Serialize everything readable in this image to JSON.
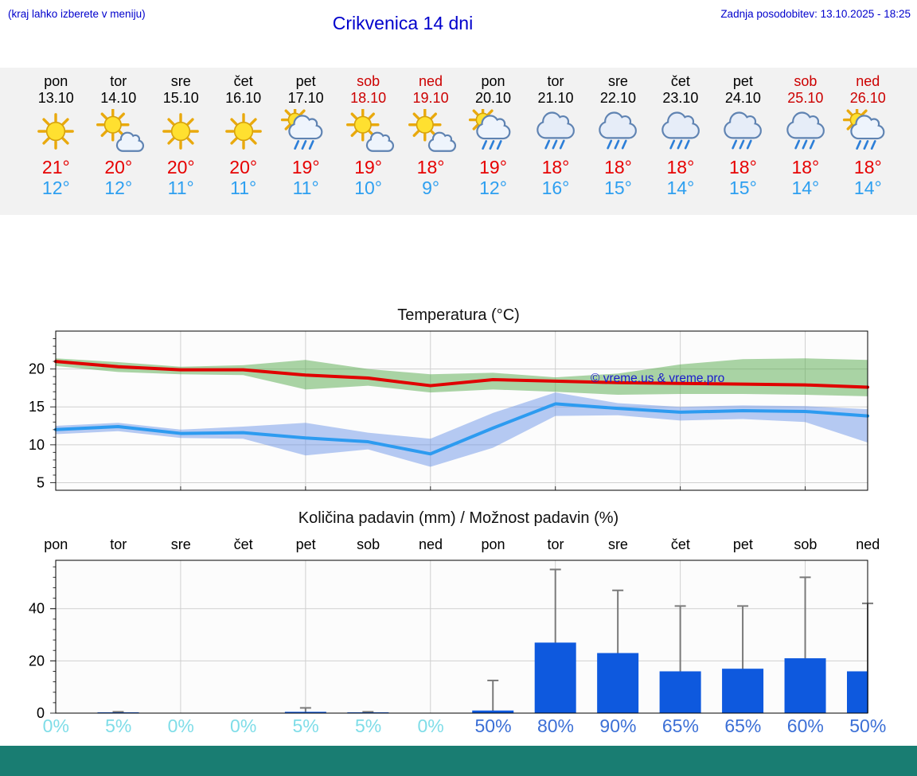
{
  "header": {
    "left_note": "(kraj lahko izberete v meniju)",
    "title": "Crikvenica 14 dni",
    "updated": "Zadnja posodobitev: 13.10.2025 - 18:25"
  },
  "colors": {
    "link_blue": "#0000cc",
    "weekday": "#000000",
    "weekend": "#cc0000",
    "tmax": "#e60000",
    "tmin": "#2d9ff0",
    "strip_bg": "#f2f2f2",
    "grid": "#d0d0d0",
    "line_red": "#e00000",
    "line_blue": "#2d9bf0",
    "band_green": "rgba(85,170,75,0.5)",
    "band_blue": "rgba(95,140,230,0.45)",
    "bar_blue": "#0e59de",
    "whisker_gray": "#7a7a7a",
    "prob_low": "#7fdde8",
    "prob_high": "#3b6fd6",
    "watermark": "#1a1acc",
    "footer_teal": "#197d72"
  },
  "forecast": {
    "days": [
      {
        "day": "pon",
        "date": "13.10",
        "weekend": false,
        "icon": "sunny",
        "tmax": "21°",
        "tmin": "12°"
      },
      {
        "day": "tor",
        "date": "14.10",
        "weekend": false,
        "icon": "partly-cloudy",
        "tmax": "20°",
        "tmin": "12°"
      },
      {
        "day": "sre",
        "date": "15.10",
        "weekend": false,
        "icon": "sunny",
        "tmax": "20°",
        "tmin": "11°"
      },
      {
        "day": "čet",
        "date": "16.10",
        "weekend": false,
        "icon": "sunny",
        "tmax": "20°",
        "tmin": "11°"
      },
      {
        "day": "pet",
        "date": "17.10",
        "weekend": false,
        "icon": "sun-rain",
        "tmax": "19°",
        "tmin": "11°"
      },
      {
        "day": "sob",
        "date": "18.10",
        "weekend": true,
        "icon": "partly-cloudy",
        "tmax": "19°",
        "tmin": "10°"
      },
      {
        "day": "ned",
        "date": "19.10",
        "weekend": true,
        "icon": "partly-cloudy",
        "tmax": "18°",
        "tmin": "9°"
      },
      {
        "day": "pon",
        "date": "20.10",
        "weekend": false,
        "icon": "sun-rain",
        "tmax": "19°",
        "tmin": "12°"
      },
      {
        "day": "tor",
        "date": "21.10",
        "weekend": false,
        "icon": "rain",
        "tmax": "18°",
        "tmin": "16°"
      },
      {
        "day": "sre",
        "date": "22.10",
        "weekend": false,
        "icon": "rain",
        "tmax": "18°",
        "tmin": "15°"
      },
      {
        "day": "čet",
        "date": "23.10",
        "weekend": false,
        "icon": "rain",
        "tmax": "18°",
        "tmin": "14°"
      },
      {
        "day": "pet",
        "date": "24.10",
        "weekend": false,
        "icon": "rain",
        "tmax": "18°",
        "tmin": "15°"
      },
      {
        "day": "sob",
        "date": "25.10",
        "weekend": true,
        "icon": "rain",
        "tmax": "18°",
        "tmin": "14°"
      },
      {
        "day": "ned",
        "date": "26.10",
        "weekend": true,
        "icon": "sun-rain",
        "tmax": "18°",
        "tmin": "14°"
      }
    ]
  },
  "chart_data": [
    {
      "type": "line",
      "title": "Temperatura (°C)",
      "categories": [
        "13.10",
        "14.10",
        "15.10",
        "16.10",
        "17.10",
        "18.10",
        "19.10",
        "20.10",
        "21.10",
        "22.10",
        "23.10",
        "24.10",
        "25.10",
        "26.10"
      ],
      "ylim": [
        4,
        25
      ],
      "yticks": [
        5,
        10,
        15,
        20
      ],
      "grid": true,
      "watermark": "© vreme.us & vreme.pro",
      "series": [
        {
          "name": "max",
          "color": "#e00000",
          "values": [
            21.0,
            20.3,
            19.9,
            19.9,
            19.2,
            18.8,
            17.8,
            18.6,
            18.4,
            18.2,
            18.1,
            18.0,
            17.9,
            17.6
          ],
          "band": {
            "color": "rgba(85,170,75,0.5)",
            "upper": [
              21.4,
              20.9,
              20.3,
              20.5,
              21.2,
              20.0,
              19.3,
              19.5,
              18.9,
              19.4,
              20.6,
              21.3,
              21.4,
              21.2
            ],
            "lower": [
              20.4,
              19.6,
              19.3,
              19.2,
              17.3,
              17.8,
              16.9,
              17.3,
              17.0,
              16.6,
              16.7,
              16.7,
              16.6,
              16.4
            ]
          }
        },
        {
          "name": "min",
          "color": "#2d9bf0",
          "values": [
            12.0,
            12.4,
            11.5,
            11.6,
            10.9,
            10.4,
            8.8,
            12.2,
            15.4,
            14.8,
            14.3,
            14.5,
            14.4,
            13.8
          ],
          "band": {
            "color": "rgba(95,140,230,0.45)",
            "upper": [
              12.5,
              12.9,
              12.0,
              12.4,
              12.9,
              11.6,
              10.8,
              14.2,
              16.9,
              15.5,
              15.0,
              15.2,
              15.1,
              14.7
            ],
            "lower": [
              11.4,
              11.8,
              10.9,
              10.8,
              8.6,
              9.4,
              7.1,
              9.6,
              13.8,
              13.9,
              13.2,
              13.4,
              13.0,
              10.3
            ]
          }
        }
      ]
    },
    {
      "type": "bar",
      "title": "Količina padavin (mm) / Možnost padavin (%)",
      "categories": [
        "pon",
        "tor",
        "sre",
        "čet",
        "pet",
        "sob",
        "ned",
        "pon",
        "tor",
        "sre",
        "čet",
        "pet",
        "sob",
        "ned"
      ],
      "values": [
        0,
        0.3,
        0,
        0,
        0.5,
        0.3,
        0,
        1,
        27,
        23,
        16,
        17,
        21,
        16
      ],
      "whisker_max": [
        0,
        0.5,
        0,
        0,
        2,
        0.5,
        0,
        12.5,
        55,
        47,
        41,
        41,
        52,
        42
      ],
      "probabilities": [
        "0%",
        "5%",
        "0%",
        "0%",
        "5%",
        "5%",
        "0%",
        "50%",
        "80%",
        "90%",
        "65%",
        "65%",
        "60%",
        "50%"
      ],
      "ylim": [
        0,
        58.5
      ],
      "yticks": [
        0,
        20,
        40
      ]
    }
  ]
}
